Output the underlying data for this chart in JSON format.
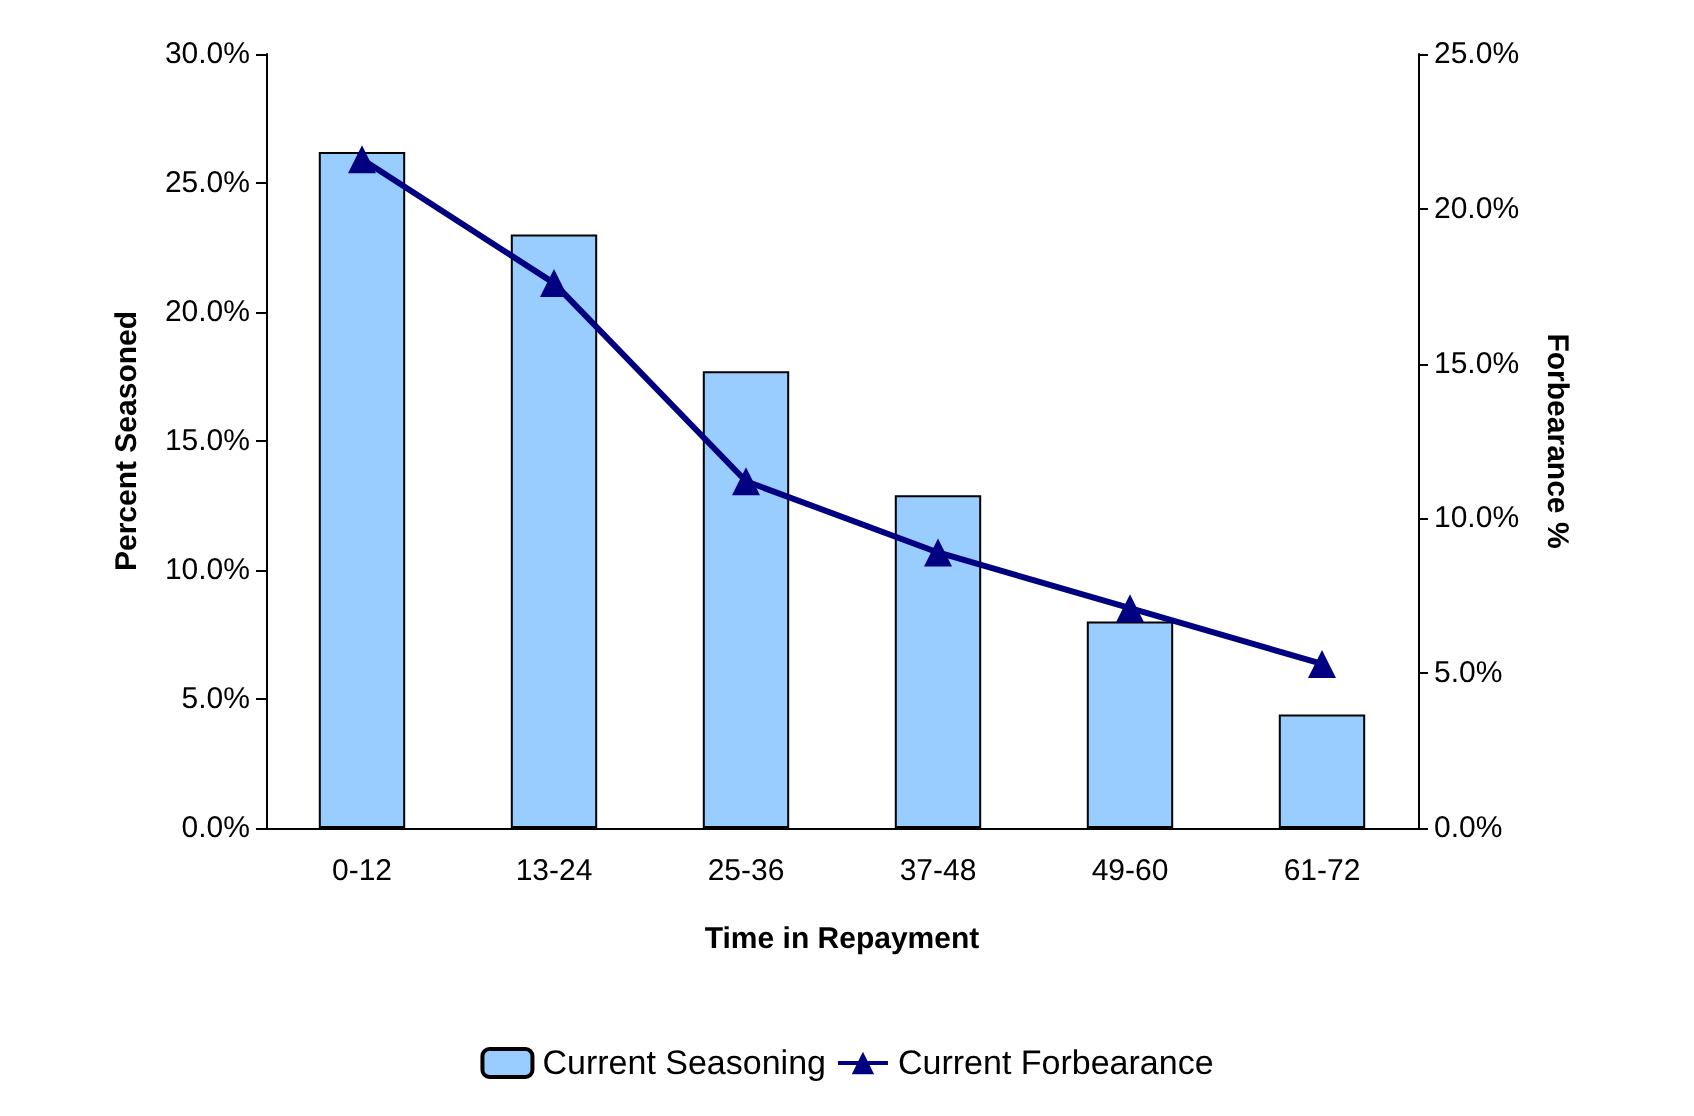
{
  "chart_data": {
    "type": "bar",
    "xlabel": "Time in Repayment",
    "ylabel": "Percent Seasoned",
    "y2label": "Forbearance %",
    "categories": [
      "0-12",
      "13-24",
      "25-36",
      "37-48",
      "49-60",
      "61-72"
    ],
    "series": [
      {
        "name": "Current Seasoning",
        "color": "#99ccff",
        "values": [
          26.2,
          23.0,
          17.7,
          12.9,
          8.0,
          4.4
        ]
      },
      {
        "name": "Current Forbearance",
        "type": "line",
        "axis": "y2",
        "color": "#000080",
        "marker": "triangle",
        "values": [
          21.6,
          17.6,
          11.2,
          8.9,
          7.1,
          5.3
        ]
      }
    ],
    "ylim": [
      0,
      30
    ],
    "yticks": [
      {
        "value": 0,
        "label": "0.0%"
      },
      {
        "value": 5,
        "label": "5.0%"
      },
      {
        "value": 10,
        "label": "10.0%"
      },
      {
        "value": 15,
        "label": "15.0%"
      },
      {
        "value": 20,
        "label": "20.0%"
      },
      {
        "value": 25,
        "label": "25.0%"
      },
      {
        "value": 30,
        "label": "30.0%"
      }
    ],
    "y2lim": [
      0,
      25
    ],
    "y2ticks": [
      {
        "value": 0,
        "label": "0.0%"
      },
      {
        "value": 5,
        "label": "5.0%"
      },
      {
        "value": 10,
        "label": "10.0%"
      },
      {
        "value": 15,
        "label": "15.0%"
      },
      {
        "value": 20,
        "label": "20.0%"
      },
      {
        "value": 25,
        "label": "25.0%"
      }
    ],
    "grid": false,
    "legend": "bottom"
  }
}
